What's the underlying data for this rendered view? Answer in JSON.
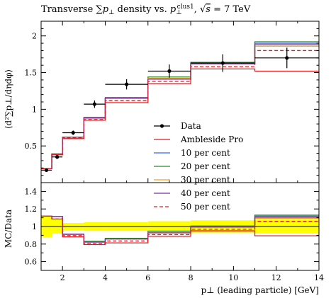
{
  "chart_data": {
    "type": "line",
    "title": "Transverse ∑p⊥ density vs. p⊥clus1, √s = 7 TeV",
    "title_parts": {
      "text1": "Transverse ∑",
      "p": "p",
      "perp": "⊥",
      "text2": " density vs. ",
      "p2": "p",
      "perp2": "⊥",
      "sup": "clus1",
      "text3": ", √",
      "s": "s",
      "text4": " = 7 TeV"
    },
    "ylabel_main": "⟨d²∑p⊥/dηdφ⟩",
    "ylabel_ratio": "MC/Data",
    "xlabel": "p⊥ (leading particle) [GeV]",
    "xlim": [
      1,
      14
    ],
    "ylim_main": [
      0,
      2.2
    ],
    "ylim_ratio": [
      0.5,
      1.5
    ],
    "grid": false,
    "legend_position": "center-right",
    "x_ticks": [
      "2",
      "4",
      "6",
      "8",
      "10",
      "12",
      "14"
    ],
    "y_ticks_main": [
      "0.5",
      "1",
      "1.5",
      "2"
    ],
    "y_ticks_ratio": [
      "0.6",
      "0.8",
      "1",
      "1.2",
      "1.4"
    ],
    "bin_edges": [
      1,
      1.5,
      2,
      3,
      4,
      6,
      8,
      11,
      14
    ],
    "data": {
      "name": "Data",
      "x": [
        1.25,
        1.75,
        2.5,
        3.5,
        5,
        7,
        9.5,
        12.5
      ],
      "y": [
        0.17,
        0.35,
        0.68,
        1.07,
        1.34,
        1.52,
        1.63,
        1.7
      ],
      "yerr": [
        0.02,
        0.02,
        0.03,
        0.05,
        0.07,
        0.09,
        0.12,
        0.14
      ]
    },
    "series": [
      {
        "name": "Ambleside Pro",
        "color": "#e41a1c",
        "dash": false,
        "values": [
          0.19,
          0.38,
          0.6,
          0.85,
          1.09,
          1.35,
          1.55,
          1.52
        ]
      },
      {
        "name": "10 per cent",
        "color": "#3366ff",
        "dash": false,
        "values": [
          0.19,
          0.39,
          0.62,
          0.88,
          1.15,
          1.42,
          1.62,
          1.9
        ]
      },
      {
        "name": "20 per cent",
        "color": "#2a8a2a",
        "dash": false,
        "values": [
          0.19,
          0.39,
          0.62,
          0.89,
          1.16,
          1.44,
          1.64,
          1.92
        ]
      },
      {
        "name": "30 per cent",
        "color": "#f0a020",
        "dash": false,
        "values": [
          0.19,
          0.39,
          0.62,
          0.88,
          1.15,
          1.42,
          1.62,
          1.86
        ]
      },
      {
        "name": "40 per cent",
        "color": "#7b2fa8",
        "dash": false,
        "values": [
          0.19,
          0.39,
          0.62,
          0.88,
          1.15,
          1.41,
          1.62,
          1.88
        ]
      },
      {
        "name": "50 per cent",
        "color": "#e41a1c",
        "dash": true,
        "values": [
          0.19,
          0.38,
          0.61,
          0.86,
          1.12,
          1.38,
          1.58,
          1.8
        ]
      }
    ],
    "ratio_band": {
      "color": "#ffff00",
      "lower": [
        0.88,
        0.92,
        0.96,
        0.95,
        0.95,
        0.94,
        0.93,
        0.92
      ],
      "upper": [
        1.12,
        1.08,
        1.04,
        1.05,
        1.05,
        1.06,
        1.07,
        1.08
      ]
    }
  }
}
